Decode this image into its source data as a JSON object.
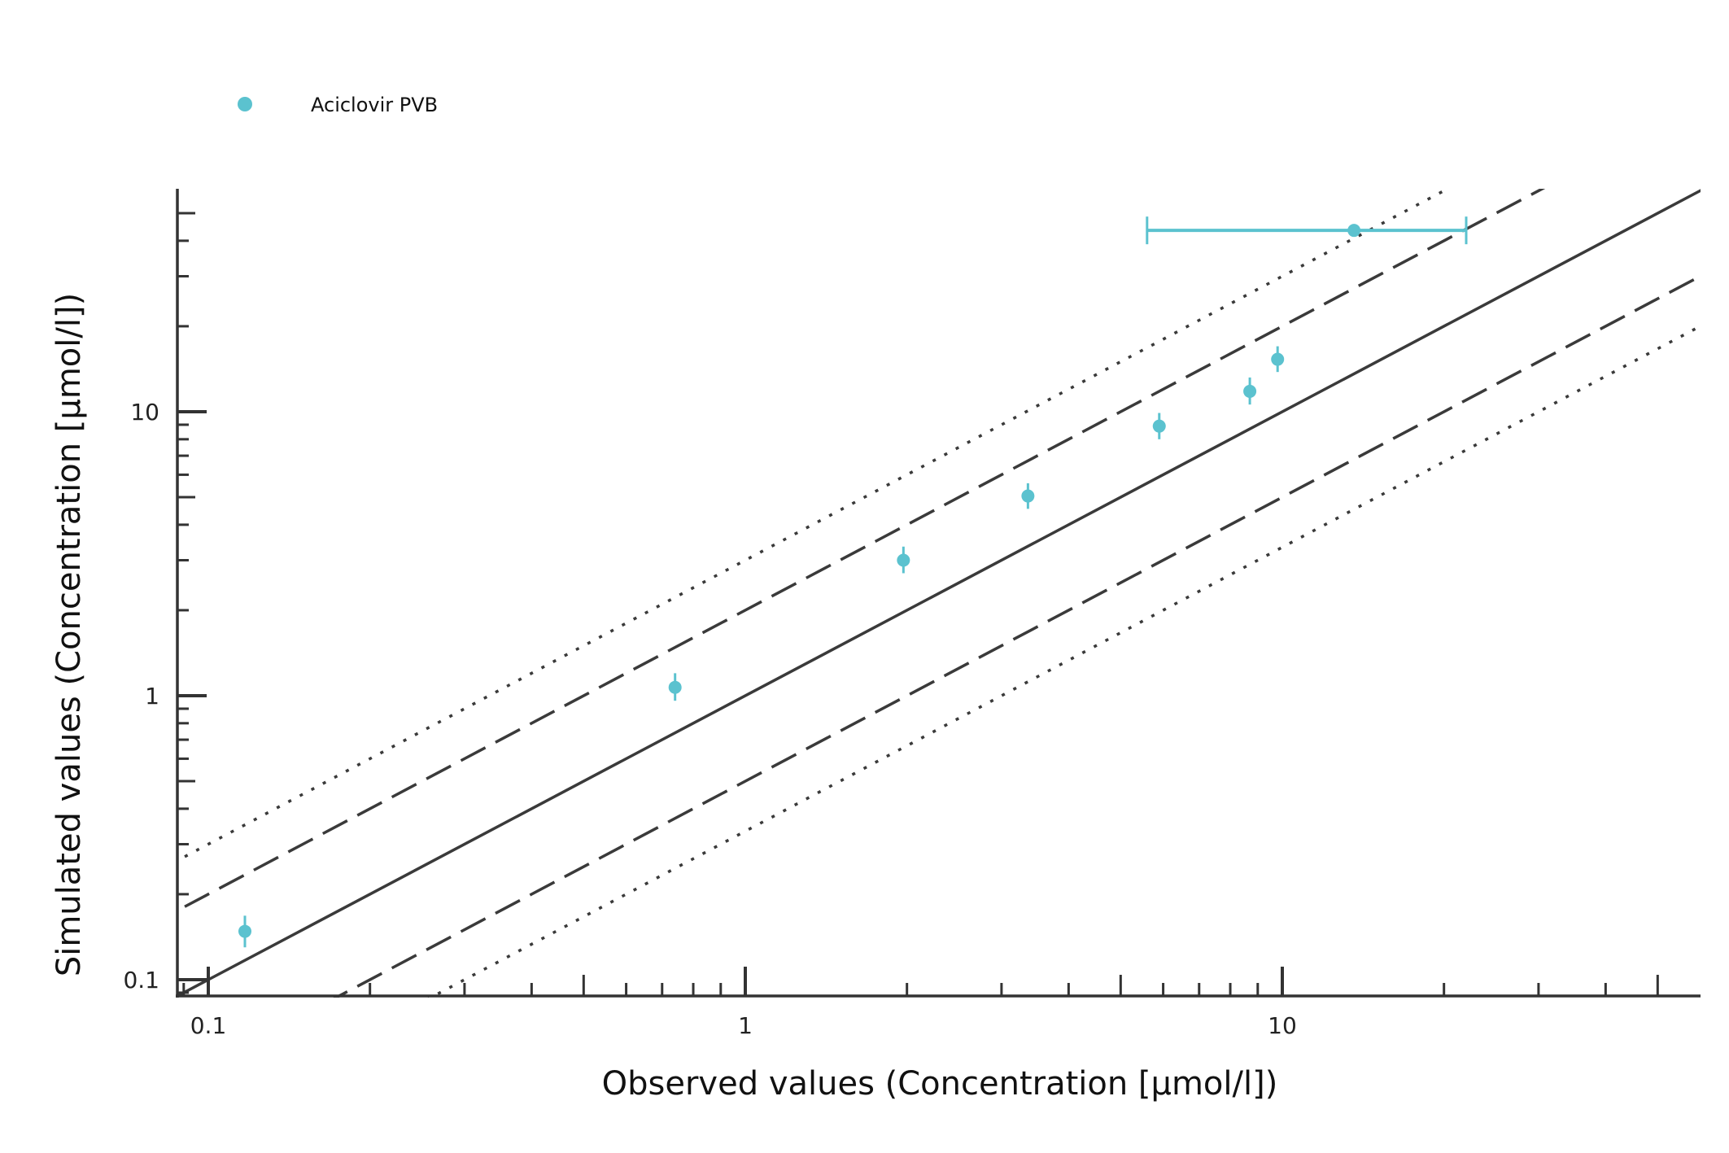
{
  "chart_data": {
    "type": "scatter",
    "title": "",
    "xlabel": "Observed values (Concentration [µmol/l])",
    "ylabel": "Simulated values (Concentration [µmol/l])",
    "xscale": "log",
    "yscale": "log",
    "xlim": [
      0.088,
      55
    ],
    "ylim": [
      0.087,
      55
    ],
    "x_ticks": [
      0.1,
      1,
      10
    ],
    "x_tick_labels": [
      "0.1",
      "1",
      "10"
    ],
    "y_ticks": [
      0.1,
      1,
      10
    ],
    "y_tick_labels": [
      "0.1",
      "1",
      "10"
    ],
    "grid": false,
    "legend": {
      "placement": "top-left",
      "entries": [
        "Aciclovir PVB"
      ]
    },
    "series_color": "#5bc2cf",
    "axis_color": "#333333",
    "series": [
      {
        "name": "Aciclovir PVB",
        "points": [
          {
            "x": 0.117,
            "y": 0.148,
            "y_low": 0.13,
            "y_high": 0.168
          },
          {
            "x": 0.74,
            "y": 1.07,
            "y_low": 0.96,
            "y_high": 1.2
          },
          {
            "x": 1.97,
            "y": 3.0,
            "y_low": 2.7,
            "y_high": 3.35
          },
          {
            "x": 3.36,
            "y": 5.05,
            "y_low": 4.55,
            "y_high": 5.6
          },
          {
            "x": 5.9,
            "y": 8.9,
            "y_low": 8.0,
            "y_high": 9.9
          },
          {
            "x": 8.7,
            "y": 11.8,
            "y_low": 10.6,
            "y_high": 13.2
          },
          {
            "x": 9.8,
            "y": 15.3,
            "y_low": 13.8,
            "y_high": 17.0
          },
          {
            "x": 13.6,
            "y": 43.5,
            "x_low": 5.6,
            "x_high": 22.0
          }
        ]
      }
    ],
    "reference_lines": [
      {
        "name": "identity",
        "factor": 1,
        "style": "solid"
      },
      {
        "name": "2-fold-upper",
        "factor": 2,
        "style": "dashed"
      },
      {
        "name": "2-fold-lower",
        "factor": 0.5,
        "style": "dashed"
      },
      {
        "name": "3-fold-upper",
        "factor": 3,
        "style": "dotted"
      },
      {
        "name": "3-fold-lower",
        "factor": 0.3333,
        "style": "dotted"
      }
    ]
  }
}
